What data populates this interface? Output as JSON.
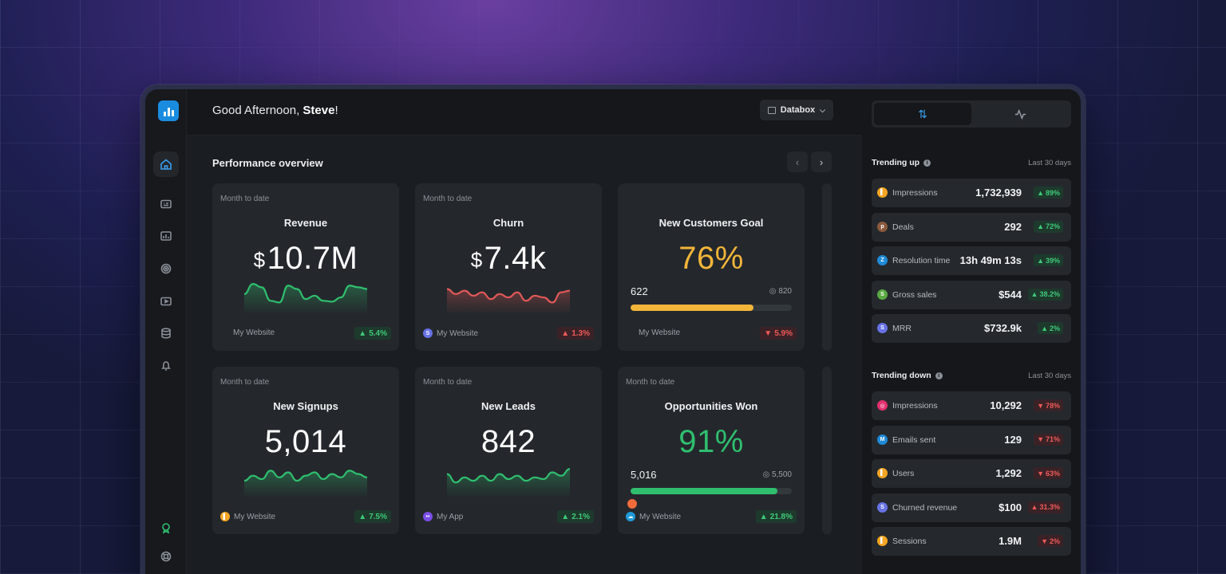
{
  "header": {
    "greeting_prefix": "Good Afternoon, ",
    "user_name": "Steve",
    "greeting_suffix": "!",
    "account_label": "Databox"
  },
  "section": {
    "title": "Performance overview"
  },
  "cards": [
    {
      "period": "Month to date",
      "title": "Revenue",
      "currency": "$",
      "value": "10.7M",
      "source": "My Website",
      "delta": "5.4%",
      "direction": "up",
      "spark_color": "#2fbf6f",
      "spark": [
        20,
        32,
        28,
        12,
        10,
        30,
        26,
        14,
        18,
        12,
        11,
        16,
        30,
        28,
        26
      ]
    },
    {
      "period": "Month to date",
      "title": "Churn",
      "currency": "$",
      "value": "7.4k",
      "source": "My Website",
      "delta": "1.3%",
      "direction": "down",
      "spark_color": "#e05858",
      "spark": [
        26,
        20,
        24,
        18,
        22,
        14,
        20,
        16,
        22,
        12,
        18,
        16,
        10,
        22,
        24
      ]
    },
    {
      "title": "New Customers Goal",
      "value": "76%",
      "value_color": "#f2b53a",
      "current": "622",
      "target": "820",
      "progress": 0.76,
      "bar_color": "#f2b53a",
      "source": "My Website",
      "delta": "5.9%",
      "direction": "down"
    },
    {
      "period": "Month to date",
      "title": "New Signups",
      "value": "5,014",
      "source": "My Website",
      "delta": "7.5%",
      "direction": "up",
      "spark_color": "#2fbf6f",
      "spark": [
        16,
        22,
        18,
        28,
        20,
        26,
        16,
        22,
        26,
        18,
        24,
        20,
        28,
        24,
        20
      ]
    },
    {
      "period": "Month to date",
      "title": "New Leads",
      "value": "842",
      "source": "My App",
      "delta": "2.1%",
      "direction": "up",
      "spark_color": "#2fbf6f",
      "spark": [
        24,
        14,
        20,
        16,
        22,
        16,
        24,
        18,
        22,
        16,
        20,
        18,
        26,
        22,
        30
      ]
    },
    {
      "period": "Month to date",
      "title": "Opportunities Won",
      "value": "91%",
      "value_color": "#2fbf6f",
      "current": "5,016",
      "target": "5,500",
      "progress": 0.91,
      "bar_color": "#2fbf6f",
      "source": "My Website",
      "delta": "21.8%",
      "direction": "up"
    }
  ],
  "panel": {
    "tabs": [
      "trend-arrows-icon",
      "activity-icon"
    ],
    "trending_up": {
      "title": "Trending up",
      "period": "Last 30 days",
      "items": [
        {
          "name": "Impressions",
          "value": "1,732,939",
          "delta": "89%",
          "icon": "analytics-icon",
          "color": "#f5a623"
        },
        {
          "name": "Deals",
          "value": "292",
          "delta": "72%",
          "icon": "pipedrive-icon",
          "color": "#8b5a3c"
        },
        {
          "name": "Resolution time",
          "value": "13h 49m 13s",
          "delta": "39%",
          "icon": "zendesk-icon",
          "color": "#1f8ad8"
        },
        {
          "name": "Gross sales",
          "value": "$544",
          "delta": "38.2%",
          "icon": "shopify-icon",
          "color": "#5aa843"
        },
        {
          "name": "MRR",
          "value": "$732.9k",
          "delta": "2%",
          "icon": "stripe-icon",
          "color": "#6772e5"
        }
      ]
    },
    "trending_down": {
      "title": "Trending down",
      "period": "Last 30 days",
      "items": [
        {
          "name": "Impressions",
          "value": "10,292",
          "delta": "78%",
          "icon": "instagram-icon",
          "color": "#e1306c"
        },
        {
          "name": "Emails sent",
          "value": "129",
          "delta": "71%",
          "icon": "mailchimp-icon",
          "color": "#1f8ad8"
        },
        {
          "name": "Users",
          "value": "1,292",
          "delta": "63%",
          "icon": "analytics-icon",
          "color": "#f5a623"
        },
        {
          "name": "Churned revenue",
          "value": "$100",
          "delta": "31.3%",
          "icon": "stripe-icon",
          "color": "#6772e5"
        },
        {
          "name": "Sessions",
          "value": "1.9M",
          "delta": "2%",
          "icon": "analytics-icon",
          "color": "#f5a623"
        }
      ]
    }
  }
}
